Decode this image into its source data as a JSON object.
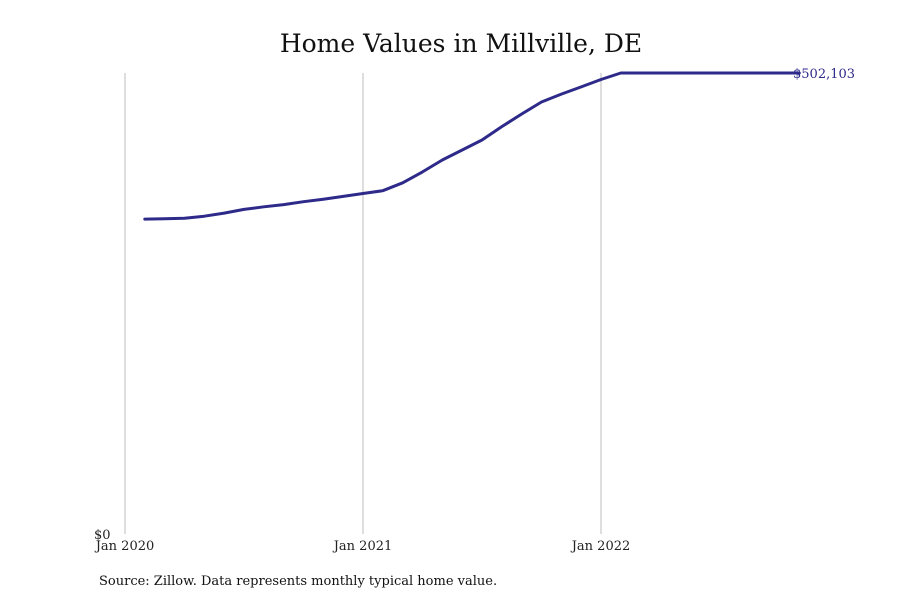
{
  "chart_data": {
    "type": "line",
    "title": "Home Values in Millville, DE",
    "x_tick_labels": [
      "Jan 2020",
      "Jan 2021",
      "Jan 2022"
    ],
    "y_tick_labels": [
      "$0"
    ],
    "ylim": [
      0,
      502103
    ],
    "end_value_label": "$502,103",
    "grid": "vertical lines at each January",
    "series": [
      {
        "x": [
          "2020-01",
          "2020-02",
          "2020-03",
          "2020-04",
          "2020-05",
          "2020-06",
          "2020-07",
          "2020-08",
          "2020-09",
          "2020-10",
          "2020-11",
          "2020-12",
          "2021-01",
          "2021-02",
          "2021-03",
          "2021-04",
          "2021-05",
          "2021-06",
          "2021-07",
          "2021-08",
          "2021-09",
          "2021-10",
          "2021-11",
          "2021-12",
          "2022-01",
          "2022-02",
          "2022-03",
          "2022-04",
          "2022-05",
          "2022-06",
          "2022-07",
          "2022-08",
          "2022-09",
          "2022-10"
        ],
        "values": [
          343000,
          343400,
          343800,
          346100,
          349500,
          353500,
          356400,
          358800,
          361900,
          364600,
          367700,
          370900,
          373900,
          382500,
          394400,
          407400,
          418200,
          429100,
          443700,
          457500,
          470500,
          479100,
          487000,
          495000,
          502103,
          502103,
          502103,
          502103,
          502103,
          502103,
          502103,
          502103,
          502103,
          502103
        ]
      }
    ],
    "color": "#2e2a8a",
    "source_note": "Source: Zillow. Data represents monthly typical home value."
  }
}
